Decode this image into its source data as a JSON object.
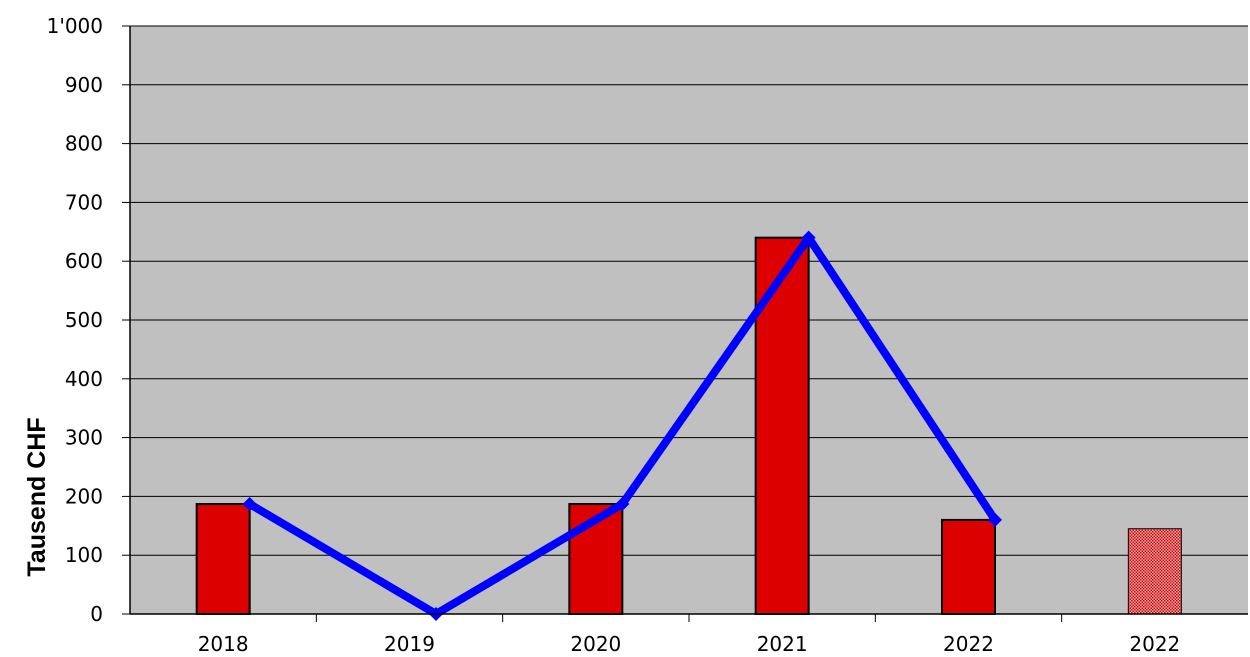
{
  "chart_data": {
    "type": "bar",
    "categories": [
      "2018",
      "2019",
      "2020",
      "2021",
      "2022",
      "2022"
    ],
    "bar_values": [
      187,
      null,
      187,
      640,
      160,
      145
    ],
    "bar_styles": [
      "solid",
      "solid",
      "solid",
      "solid",
      "solid",
      "patterned"
    ],
    "line_values": [
      187,
      0,
      187,
      640,
      160,
      null
    ],
    "ylabel": "Tausend CHF",
    "xlabel": "",
    "ylim": [
      0,
      1000
    ],
    "yticks": [
      0,
      100,
      200,
      300,
      400,
      500,
      600,
      700,
      800,
      900,
      1000
    ],
    "ytick_labels": [
      "0",
      "100",
      "200",
      "300",
      "400",
      "500",
      "600",
      "700",
      "800",
      "900",
      "1'000"
    ],
    "grid": true,
    "legend": "none",
    "colors": {
      "plot_background": "#c0c0c0",
      "bar_fill": "#dd0000",
      "bar_pattern_fill": "#f08080",
      "bar_stroke": "#000000",
      "line": "#0000ff",
      "grid": "#000000"
    }
  }
}
